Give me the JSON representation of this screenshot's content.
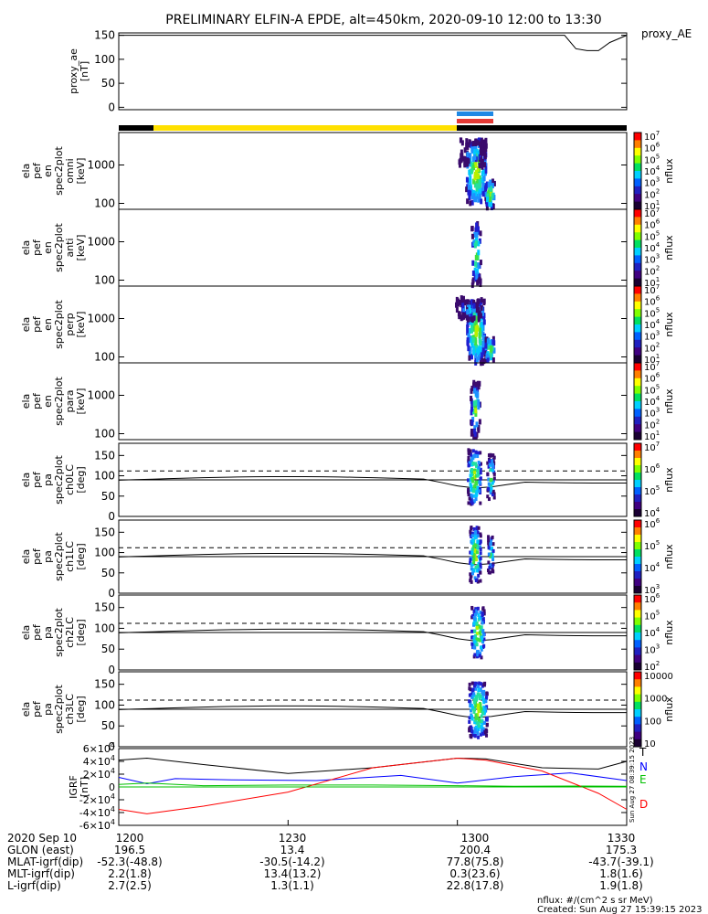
{
  "title": "PRELIMINARY ELFIN-A EPDE, alt=450km, 2020-09-10 12:00 to 13:30",
  "footer": {
    "units_note": "nflux: #/(cm^2 s sr MeV)",
    "created": "Created: Sun Aug 27 15:39:15 2023",
    "side_stamp": "Sun Aug 27 08:39:15 2023"
  },
  "colors": {
    "black": "#000000",
    "blue": "#0000ff",
    "green": "#00c000",
    "red": "#ff0000",
    "yellow": "#ffe000",
    "science_bar_blue": "#1e88e5",
    "science_bar_red": "#e53935"
  },
  "chart_data": [
    {
      "type": "line",
      "panel": "proxy_ae",
      "ylabel": "proxy_ae\n[nT]",
      "legend": [
        "proxy_AE"
      ],
      "ylim": [
        -5,
        155
      ],
      "yticks": [
        "0",
        "50",
        "100",
        "150"
      ],
      "series": [
        {
          "name": "proxy_AE",
          "x": [
            "12:00",
            "13:19",
            "13:21",
            "13:23",
            "13:25",
            "13:27",
            "13:30"
          ],
          "values": [
            150,
            150,
            122,
            118,
            118,
            135,
            150
          ]
        }
      ]
    },
    {
      "type": "heatmap",
      "panel": "spec_omni",
      "ylabel": "ela\npef\nen\nspec2plot\nomni\n[keV]",
      "yscale": "log",
      "yticks": [
        "100",
        "1000"
      ],
      "colorbar": {
        "label": "nflux",
        "ticks": [
          "10^1",
          "10^2",
          "10^3",
          "10^4",
          "10^5",
          "10^6",
          "10^7"
        ]
      },
      "events": [
        {
          "start": "13:00",
          "end": "13:06"
        }
      ]
    },
    {
      "type": "heatmap",
      "panel": "spec_anti",
      "ylabel": "ela\npef\nen\nspec2plot\nanti\n[keV]",
      "yscale": "log",
      "yticks": [
        "100",
        "1000"
      ],
      "colorbar": {
        "label": "nflux",
        "ticks": [
          "10^1",
          "10^2",
          "10^3",
          "10^4",
          "10^5",
          "10^6",
          "10^7"
        ]
      },
      "events": [
        {
          "start": "13:00",
          "end": "13:06"
        }
      ]
    },
    {
      "type": "heatmap",
      "panel": "spec_perp",
      "ylabel": "ela\npef\nen\nspec2plot\nperp\n[keV]",
      "yscale": "log",
      "yticks": [
        "100",
        "1000"
      ],
      "colorbar": {
        "label": "nflux",
        "ticks": [
          "10^1",
          "10^2",
          "10^3",
          "10^4",
          "10^5",
          "10^6",
          "10^7"
        ]
      },
      "events": [
        {
          "start": "13:00",
          "end": "13:06"
        }
      ]
    },
    {
      "type": "heatmap",
      "panel": "spec_para",
      "ylabel": "ela\npef\nen\nspec2plot\npara\n[keV]",
      "yscale": "log",
      "yticks": [
        "100",
        "1000"
      ],
      "colorbar": {
        "label": "nflux",
        "ticks": [
          "10^1",
          "10^2",
          "10^3",
          "10^4",
          "10^5",
          "10^6",
          "10^7"
        ]
      },
      "events": [
        {
          "start": "13:00",
          "end": "13:06"
        }
      ]
    },
    {
      "type": "heatmap",
      "panel": "pa_ch0LC",
      "ylabel": "ela\npef\npa\nspec2plot\nch0LC\n[deg]",
      "yticks": [
        "0",
        "50",
        "100",
        "150"
      ],
      "ylim": [
        0,
        180
      ],
      "colorbar": {
        "label": "nflux",
        "ticks": [
          "10^4",
          "10^5",
          "10^6",
          "10^7"
        ]
      }
    },
    {
      "type": "heatmap",
      "panel": "pa_ch1LC",
      "ylabel": "ela\npef\npa\nspec2plot\nch1LC\n[deg]",
      "yticks": [
        "0",
        "50",
        "100",
        "150"
      ],
      "ylim": [
        0,
        180
      ],
      "colorbar": {
        "label": "nflux",
        "ticks": [
          "10^3",
          "10^4",
          "10^5",
          "10^6"
        ]
      }
    },
    {
      "type": "heatmap",
      "panel": "pa_ch2LC",
      "ylabel": "ela\npef\npa\nspec2plot\nch2LC\n[deg]",
      "yticks": [
        "0",
        "50",
        "100",
        "150"
      ],
      "ylim": [
        0,
        180
      ],
      "colorbar": {
        "label": "nflux",
        "ticks": [
          "10^2",
          "10^3",
          "10^4",
          "10^5",
          "10^6"
        ]
      }
    },
    {
      "type": "heatmap",
      "panel": "pa_ch3LC",
      "ylabel": "ela\npef\npa\nspec2plot\nch3LC\n[deg]",
      "yticks": [
        "0",
        "50",
        "100",
        "150"
      ],
      "ylim": [
        0,
        180
      ],
      "colorbar": {
        "label": "nflux",
        "ticks": [
          "10",
          "100",
          "1000",
          "10000"
        ]
      }
    },
    {
      "type": "line",
      "panel": "igrf",
      "ylabel": "IGRF\n[nT]",
      "legend": [
        "T",
        "N",
        "E",
        "D"
      ],
      "yticks": [
        "-6x10^4",
        "-4x10^4",
        "-2x10^4",
        "0",
        "2x10^4",
        "4x10^4",
        "6x10^4"
      ],
      "ylim": [
        -60000,
        60000
      ],
      "series": [
        {
          "name": "T",
          "x": [
            "12:00",
            "12:05",
            "12:15",
            "12:30",
            "12:45",
            "13:00",
            "13:05",
            "13:15",
            "13:25",
            "13:30"
          ],
          "values": [
            42000,
            45000,
            35000,
            21000,
            30000,
            45000,
            44000,
            30000,
            28000,
            40000
          ]
        },
        {
          "name": "N",
          "x": [
            "12:00",
            "12:05",
            "12:10",
            "12:20",
            "12:35",
            "12:50",
            "13:00",
            "13:10",
            "13:20",
            "13:30"
          ],
          "values": [
            15000,
            5000,
            13000,
            11000,
            10000,
            18000,
            6000,
            16000,
            22000,
            10000
          ]
        },
        {
          "name": "E",
          "x": [
            "12:00",
            "12:05",
            "12:15",
            "12:30",
            "12:45",
            "13:00",
            "13:10",
            "13:20",
            "13:30"
          ],
          "values": [
            4000,
            6000,
            2000,
            3000,
            3000,
            2000,
            1000,
            1500,
            1000
          ]
        },
        {
          "name": "D",
          "x": [
            "12:00",
            "12:05",
            "12:15",
            "12:30",
            "12:45",
            "13:00",
            "13:05",
            "13:15",
            "13:25",
            "13:30"
          ],
          "values": [
            -35000,
            -42000,
            -30000,
            -8000,
            30000,
            45000,
            42000,
            25000,
            -10000,
            -35000
          ]
        }
      ]
    }
  ],
  "xaxis": {
    "ticks": [
      "1200",
      "1230",
      "1300",
      "1330"
    ],
    "rows": [
      {
        "label": "2020 Sep 10",
        "values": [
          "1200",
          "1230",
          "1300",
          "1330"
        ]
      },
      {
        "label": "GLON (east)",
        "values": [
          "196.5",
          "13.4",
          "200.4",
          "175.3"
        ]
      },
      {
        "label": "MLAT-igrf(dip)",
        "values": [
          "-52.3(-48.8)",
          "-30.5(-14.2)",
          "77.8(75.8)",
          "-43.7(-39.1)"
        ]
      },
      {
        "label": "MLT-igrf(dip)",
        "values": [
          "2.2(1.8)",
          "13.4(13.2)",
          "0.3(23.6)",
          "1.8(1.6)"
        ]
      },
      {
        "label": "L-igrf(dip)",
        "values": [
          "2.7(2.5)",
          "1.3(1.1)",
          "22.8(17.8)",
          "1.9(1.8)"
        ]
      }
    ]
  }
}
